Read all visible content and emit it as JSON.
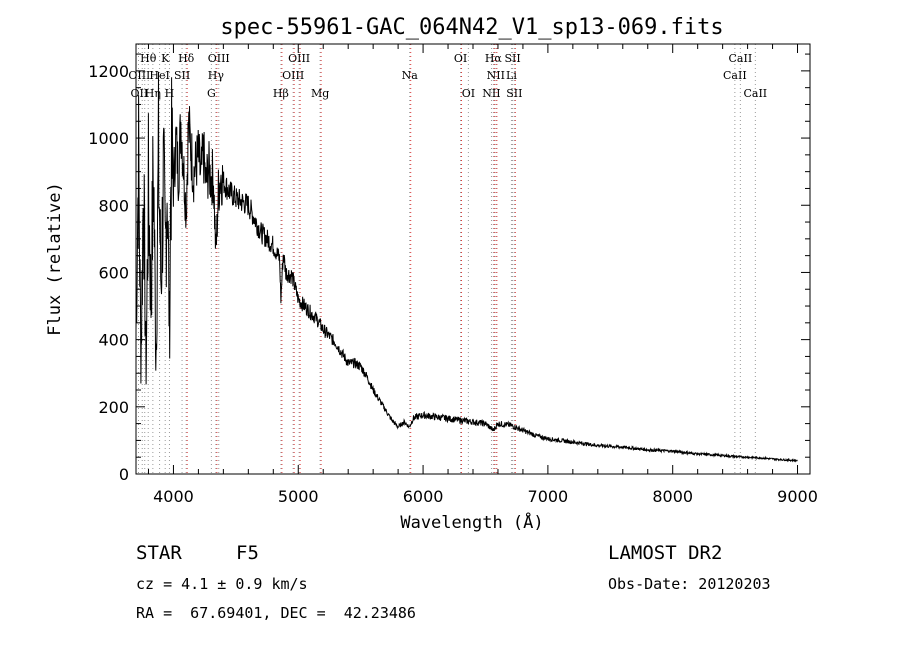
{
  "chart_data": {
    "type": "line",
    "title": "spec-55961-GAC_064N42_V1_sp13-069.fits",
    "xlabel": "Wavelength (Å)",
    "ylabel": "Flux (relative)",
    "xlim": [
      3700,
      9100
    ],
    "ylim": [
      0,
      1280
    ],
    "x_ticks": [
      4000,
      5000,
      6000,
      7000,
      8000,
      9000
    ],
    "y_ticks": [
      0,
      200,
      400,
      600,
      800,
      1000,
      1200
    ],
    "series": [
      {
        "name": "flux",
        "x": [
          3700,
          3720,
          3740,
          3760,
          3780,
          3800,
          3820,
          3840,
          3860,
          3880,
          3900,
          3920,
          3935,
          3950,
          3968,
          3980,
          4000,
          4020,
          4040,
          4060,
          4080,
          4102,
          4120,
          4140,
          4160,
          4180,
          4200,
          4220,
          4240,
          4260,
          4280,
          4300,
          4320,
          4340,
          4360,
          4380,
          4400,
          4450,
          4500,
          4550,
          4600,
          4650,
          4700,
          4750,
          4800,
          4850,
          4861,
          4880,
          4900,
          4950,
          5000,
          5050,
          5100,
          5150,
          5200,
          5250,
          5300,
          5350,
          5400,
          5450,
          5500,
          5550,
          5600,
          5650,
          5700,
          5750,
          5800,
          5850,
          5890,
          5920,
          5950,
          6000,
          6100,
          6200,
          6300,
          6400,
          6500,
          6563,
          6600,
          6700,
          6800,
          6900,
          7000,
          7200,
          7400,
          7600,
          7800,
          8000,
          8200,
          8400,
          8500,
          8600,
          8700,
          8800,
          8900,
          9000
        ],
        "values": [
          430,
          950,
          330,
          880,
          300,
          860,
          510,
          920,
          340,
          940,
          560,
          880,
          640,
          900,
          400,
          930,
          860,
          1000,
          890,
          1050,
          920,
          780,
          1040,
          970,
          890,
          920,
          950,
          880,
          960,
          860,
          910,
          880,
          890,
          650,
          840,
          890,
          870,
          840,
          820,
          810,
          800,
          760,
          720,
          700,
          680,
          640,
          520,
          660,
          600,
          590,
          520,
          500,
          480,
          460,
          430,
          410,
          390,
          360,
          330,
          330,
          320,
          290,
          250,
          220,
          190,
          160,
          140,
          155,
          140,
          165,
          170,
          175,
          170,
          165,
          160,
          155,
          150,
          130,
          150,
          145,
          130,
          115,
          105,
          95,
          85,
          80,
          72,
          68,
          60,
          55,
          52,
          50,
          48,
          45,
          42,
          40
        ]
      }
    ],
    "spectral_lines": [
      {
        "name": "Hθ",
        "x": 3798,
        "row": 1
      },
      {
        "name": "K",
        "x": 3934,
        "row": 1
      },
      {
        "name": "Hδ",
        "x": 4102,
        "row": 1
      },
      {
        "name": "OIII",
        "x": 4363,
        "row": 1
      },
      {
        "name": "OIII",
        "x": 5007,
        "row": 1
      },
      {
        "name": "OI",
        "x": 6300,
        "row": 1
      },
      {
        "name": "Hα",
        "x": 6563,
        "row": 1
      },
      {
        "name": "SII",
        "x": 6717,
        "row": 1
      },
      {
        "name": "CaII",
        "x": 8542,
        "row": 1
      },
      {
        "name": "OIII",
        "x": 3727,
        "row": 2
      },
      {
        "name": "HeI",
        "x": 3889,
        "row": 2
      },
      {
        "name": "SII",
        "x": 4069,
        "row": 2
      },
      {
        "name": "Hγ",
        "x": 4340,
        "row": 2
      },
      {
        "name": "OIII",
        "x": 4959,
        "row": 2
      },
      {
        "name": "Na",
        "x": 5893,
        "row": 2
      },
      {
        "name": "NII",
        "x": 6583,
        "row": 2
      },
      {
        "name": "Li",
        "x": 6708,
        "row": 2
      },
      {
        "name": "CaII",
        "x": 8498,
        "row": 2
      },
      {
        "name": "OII",
        "x": 3727,
        "row": 3
      },
      {
        "name": "Hη",
        "x": 3835,
        "row": 3
      },
      {
        "name": "H",
        "x": 3968,
        "row": 3
      },
      {
        "name": "G",
        "x": 4304,
        "row": 3
      },
      {
        "name": "Hβ",
        "x": 4861,
        "row": 3
      },
      {
        "name": "Mg",
        "x": 5175,
        "row": 3
      },
      {
        "name": "OI",
        "x": 6363,
        "row": 3
      },
      {
        "name": "NII",
        "x": 6548,
        "row": 3
      },
      {
        "name": "SII",
        "x": 6731,
        "row": 3
      },
      {
        "name": "CaII",
        "x": 8662,
        "row": 3
      }
    ],
    "grey_line_x": [
      3720,
      3750,
      3770,
      3798,
      3835,
      3889,
      3934,
      3968,
      4069,
      4102,
      4304,
      4340,
      4363,
      4861,
      4959,
      5007,
      5175,
      5893,
      6300,
      6363,
      6548,
      6563,
      6583,
      6708,
      6717,
      6731,
      8498,
      8542,
      8662
    ],
    "red_line_x": [
      4102,
      4340,
      4861,
      4959,
      5007,
      5175,
      5893,
      6300,
      6563,
      6583,
      6731
    ]
  },
  "info": {
    "object_class": "STAR",
    "subclass": "F5",
    "survey": "LAMOST DR2",
    "cz_text": "cz = 4.1 ± 0.9 km/s",
    "obs_date_text": "Obs-Date: 20120203",
    "coords_text": "RA =  67.69401, DEC =  42.23486"
  },
  "colors": {
    "red_lines": "#e23c3c",
    "grey_lines": "#9a9a9a",
    "axis": "#000000"
  }
}
